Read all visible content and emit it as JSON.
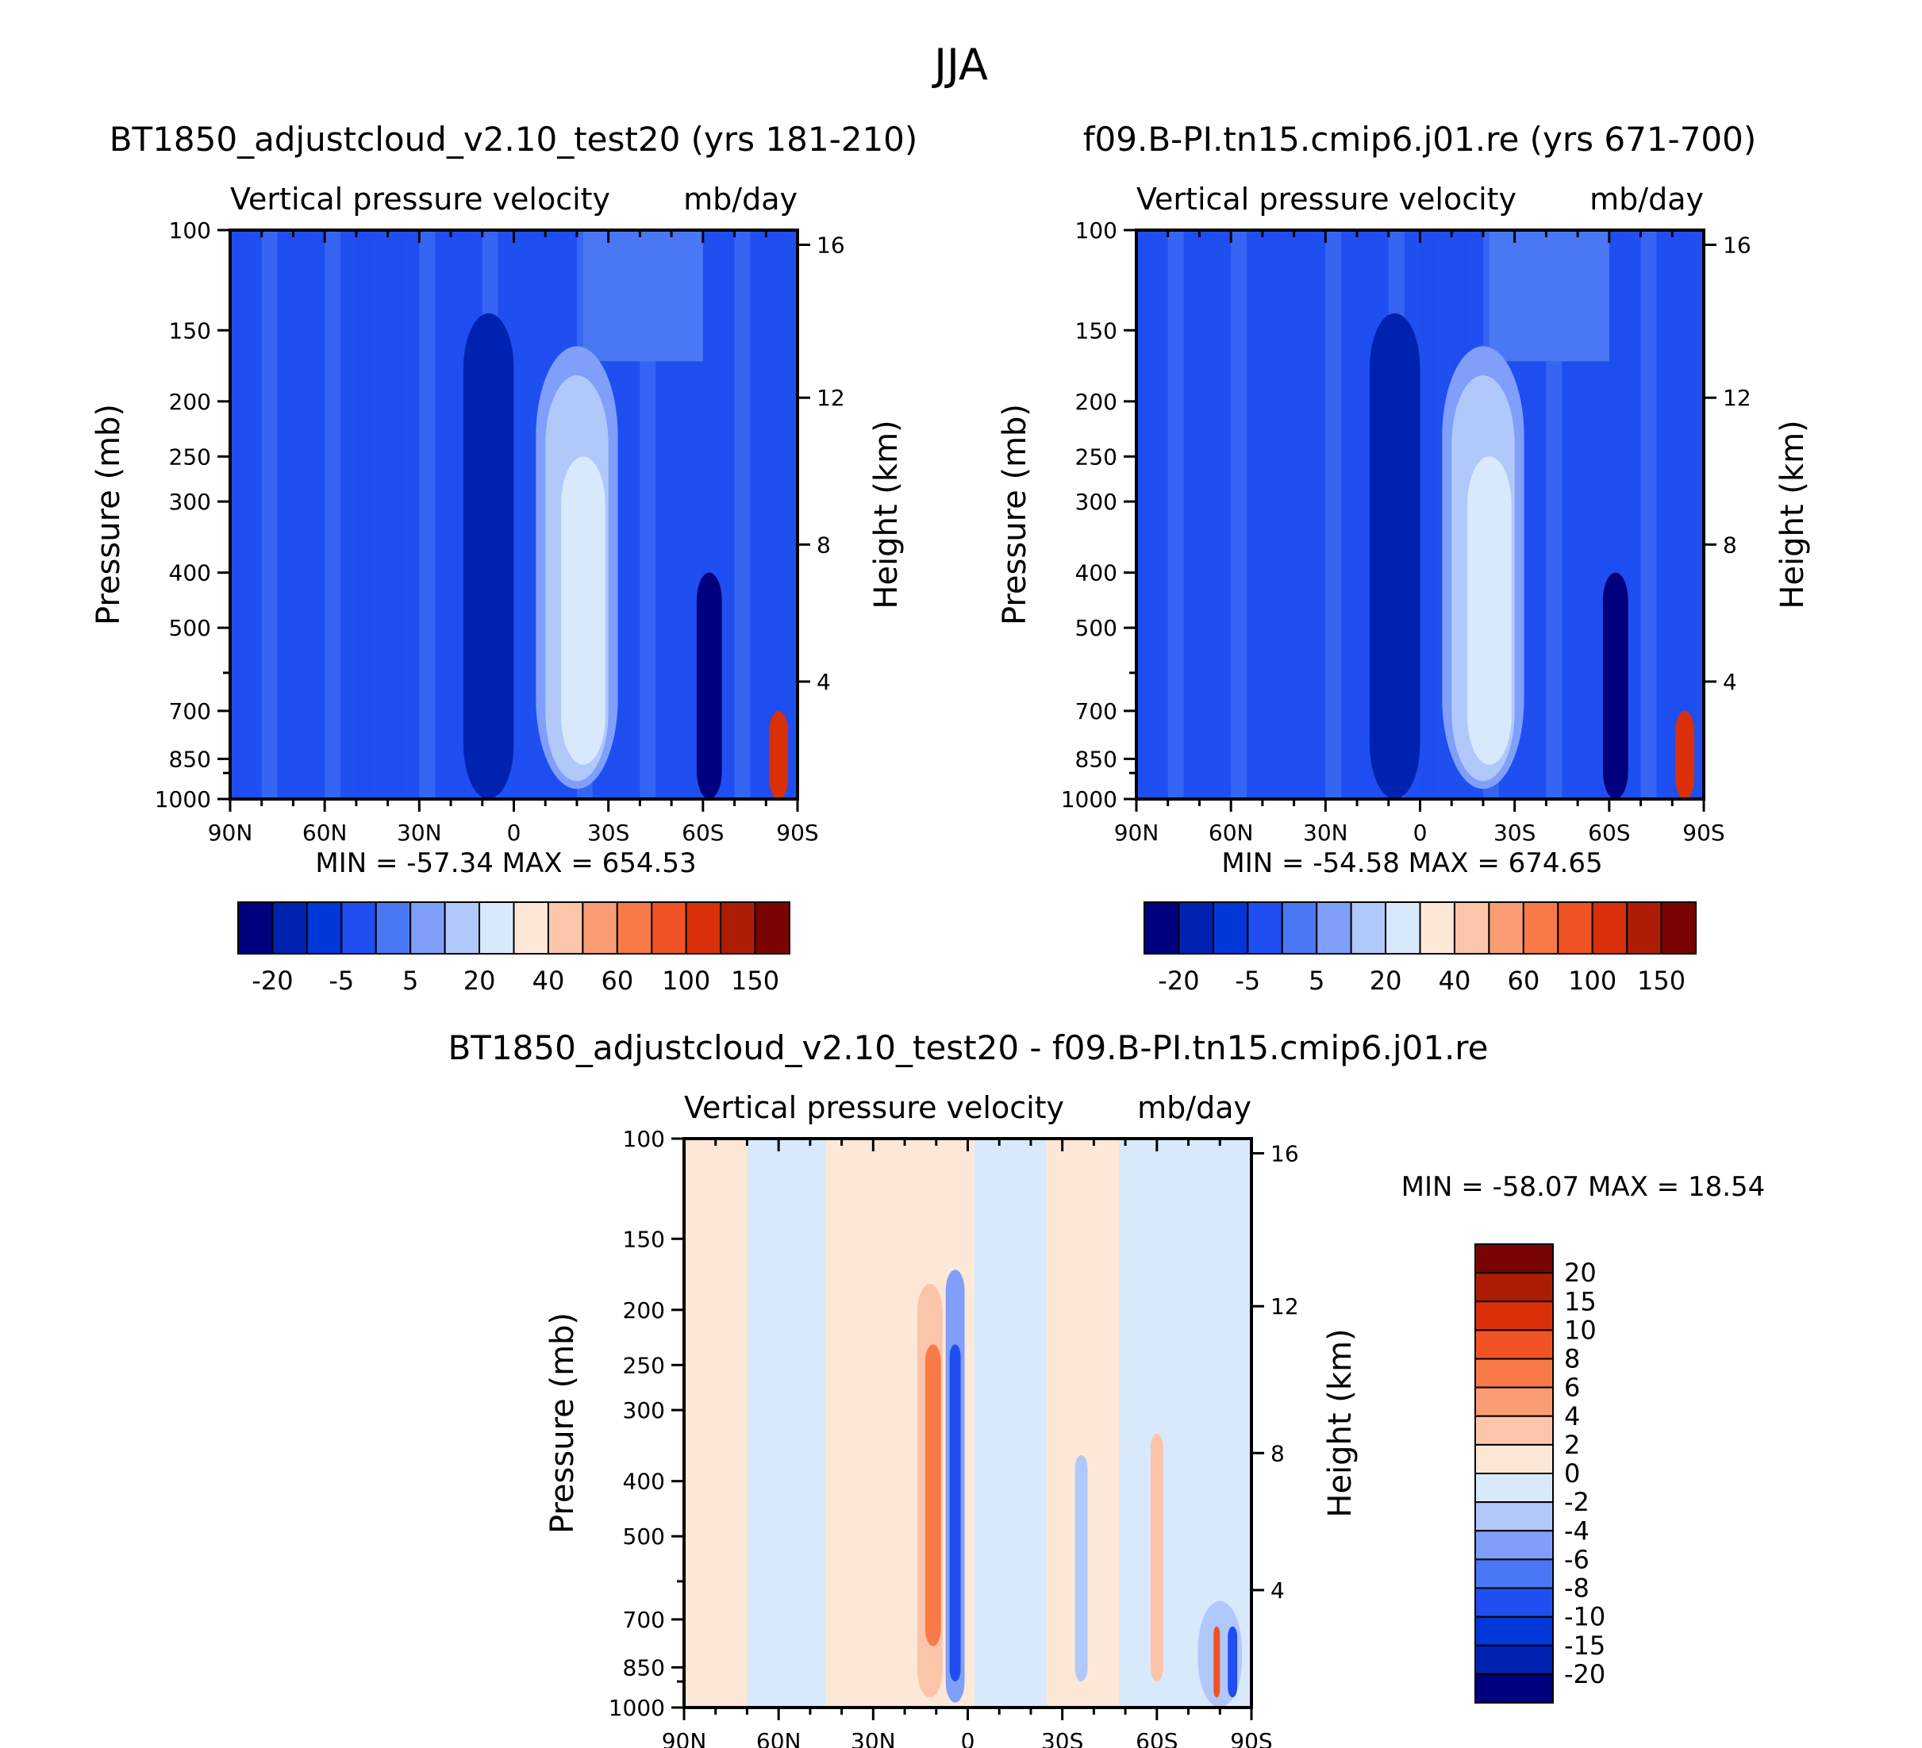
{
  "figure": {
    "title": "JJA"
  },
  "chart_data": [
    {
      "type": "heatmap",
      "id": "p1",
      "case_title": "BT1850_adjustcloud_v2.10_test20 (yrs 181-210)",
      "title": "Vertical pressure velocity",
      "units": "mb/day",
      "ylabel": "Pressure (mb)",
      "y2label": "Height (km)",
      "x_ticks": [
        "90N",
        "60N",
        "30N",
        "0",
        "30S",
        "60S",
        "90S"
      ],
      "y_ticks": [
        "100",
        "150",
        "200",
        "250",
        "300",
        "400",
        "500",
        "700",
        "850",
        "1000"
      ],
      "y2_ticks": [
        "16",
        "12",
        "8",
        "4"
      ],
      "stats": "MIN = -57.34   MAX = 654.53",
      "colorbar_labels": [
        "-20",
        "-5",
        "5",
        "20",
        "40",
        "60",
        "100",
        "150"
      ],
      "colorbar_colors": [
        "#00007f",
        "#0022b0",
        "#0037d9",
        "#1f4ff0",
        "#4a78f5",
        "#7f9ffa",
        "#b1c8fb",
        "#d9e9fc",
        "#fde8d8",
        "#fcc5aa",
        "#fa9d73",
        "#f87a48",
        "#f25324",
        "#d9300a",
        "#ad1d04",
        "#7a0403"
      ],
      "features": [
        {
          "lat": -8,
          "p_top": 210,
          "p_bot": 990,
          "width_deg": 9,
          "level": 0
        },
        {
          "lat": -8,
          "p_top": 140,
          "p_bot": 1000,
          "width_deg": 16,
          "level": 1
        },
        {
          "lat": 20,
          "p_top": 160,
          "p_bot": 960,
          "width_deg": 26,
          "level": 5
        },
        {
          "lat": 20,
          "p_top": 180,
          "p_bot": 930,
          "width_deg": 20,
          "level": 6
        },
        {
          "lat": 22,
          "p_top": 250,
          "p_bot": 870,
          "width_deg": 14,
          "level": 7
        },
        {
          "lat": 62,
          "p_top": 400,
          "p_bot": 1000,
          "width_deg": 8,
          "level": 0
        },
        {
          "lat": 84,
          "p_top": 700,
          "p_bot": 1000,
          "width_deg": 6,
          "level": 13
        }
      ]
    },
    {
      "type": "heatmap",
      "id": "p2",
      "case_title": "f09.B-PI.tn15.cmip6.j01.re (yrs 671-700)",
      "title": "Vertical pressure velocity",
      "units": "mb/day",
      "ylabel": "Pressure (mb)",
      "y2label": "Height (km)",
      "x_ticks": [
        "90N",
        "60N",
        "30N",
        "0",
        "30S",
        "60S",
        "90S"
      ],
      "y_ticks": [
        "100",
        "150",
        "200",
        "250",
        "300",
        "400",
        "500",
        "700",
        "850",
        "1000"
      ],
      "y2_ticks": [
        "16",
        "12",
        "8",
        "4"
      ],
      "stats": "MIN = -54.58   MAX = 674.65",
      "colorbar_labels": [
        "-20",
        "-5",
        "5",
        "20",
        "40",
        "60",
        "100",
        "150"
      ],
      "colorbar_colors": [
        "#00007f",
        "#0022b0",
        "#0037d9",
        "#1f4ff0",
        "#4a78f5",
        "#7f9ffa",
        "#b1c8fb",
        "#d9e9fc",
        "#fde8d8",
        "#fcc5aa",
        "#fa9d73",
        "#f87a48",
        "#f25324",
        "#d9300a",
        "#ad1d04",
        "#7a0403"
      ],
      "features": [
        {
          "lat": -8,
          "p_top": 210,
          "p_bot": 990,
          "width_deg": 9,
          "level": 0
        },
        {
          "lat": -8,
          "p_top": 140,
          "p_bot": 1000,
          "width_deg": 16,
          "level": 1
        },
        {
          "lat": 20,
          "p_top": 160,
          "p_bot": 960,
          "width_deg": 26,
          "level": 5
        },
        {
          "lat": 20,
          "p_top": 180,
          "p_bot": 930,
          "width_deg": 20,
          "level": 6
        },
        {
          "lat": 22,
          "p_top": 250,
          "p_bot": 870,
          "width_deg": 14,
          "level": 7
        },
        {
          "lat": 62,
          "p_top": 400,
          "p_bot": 1000,
          "width_deg": 8,
          "level": 0
        },
        {
          "lat": 84,
          "p_top": 700,
          "p_bot": 1000,
          "width_deg": 6,
          "level": 13
        }
      ]
    },
    {
      "type": "heatmap",
      "id": "p3",
      "case_title": "BT1850_adjustcloud_v2.10_test20 - f09.B-PI.tn15.cmip6.j01.re",
      "title": "Vertical pressure velocity",
      "units": "mb/day",
      "ylabel": "Pressure (mb)",
      "y2label": "Height (km)",
      "x_ticks": [
        "90N",
        "60N",
        "30N",
        "0",
        "30S",
        "60S",
        "90S"
      ],
      "y_ticks": [
        "100",
        "150",
        "200",
        "250",
        "300",
        "400",
        "500",
        "700",
        "850",
        "1000"
      ],
      "y2_ticks": [
        "16",
        "12",
        "8",
        "4"
      ],
      "stats": "MIN = -58.07   MAX = 18.54",
      "colorbar_labels": [
        "20",
        "15",
        "10",
        "8",
        "6",
        "4",
        "2",
        "0",
        "-2",
        "-4",
        "-6",
        "-8",
        "-10",
        "-15",
        "-20"
      ],
      "colorbar_colors": [
        "#7a0403",
        "#ad1d04",
        "#d9300a",
        "#f25324",
        "#f87a48",
        "#fa9d73",
        "#fcc5aa",
        "#fde8d8",
        "#d9e9fc",
        "#b1c8fb",
        "#7f9ffa",
        "#4a78f5",
        "#1f4ff0",
        "#0037d9",
        "#0022b0",
        "#00007f"
      ],
      "bands": [
        {
          "from": -90,
          "to": -70,
          "color": "#fde8d8"
        },
        {
          "from": -70,
          "to": -45,
          "color": "#d9e9fc"
        },
        {
          "from": -45,
          "to": -15,
          "color": "#fde8d8"
        },
        {
          "from": -15,
          "to": 2,
          "color": "#fde8d8"
        },
        {
          "from": 2,
          "to": 25,
          "color": "#d9e9fc"
        },
        {
          "from": 25,
          "to": 48,
          "color": "#fde8d8"
        },
        {
          "from": 48,
          "to": 68,
          "color": "#d9e9fc"
        },
        {
          "from": 68,
          "to": 90,
          "color": "#d9e9fc"
        }
      ],
      "features": [
        {
          "lat": -12,
          "p_top": 180,
          "p_bot": 960,
          "width_deg": 8,
          "color": "#fcc5aa"
        },
        {
          "lat": -11,
          "p_top": 230,
          "p_bot": 780,
          "width_deg": 5,
          "color": "#f87a48"
        },
        {
          "lat": -4,
          "p_top": 170,
          "p_bot": 980,
          "width_deg": 6,
          "color": "#7f9ffa"
        },
        {
          "lat": -4,
          "p_top": 230,
          "p_bot": 900,
          "width_deg": 3.5,
          "color": "#1f4ff0"
        },
        {
          "lat": 36,
          "p_top": 360,
          "p_bot": 900,
          "width_deg": 4,
          "color": "#b1c8fb"
        },
        {
          "lat": 60,
          "p_top": 330,
          "p_bot": 900,
          "width_deg": 4,
          "color": "#fcc5aa"
        },
        {
          "lat": 80,
          "p_top": 650,
          "p_bot": 1000,
          "width_deg": 14,
          "color": "#b1c8fb"
        },
        {
          "lat": 84,
          "p_top": 720,
          "p_bot": 960,
          "width_deg": 3,
          "color": "#1f4ff0"
        },
        {
          "lat": 79,
          "p_top": 720,
          "p_bot": 960,
          "width_deg": 2,
          "color": "#f25324"
        }
      ]
    }
  ]
}
